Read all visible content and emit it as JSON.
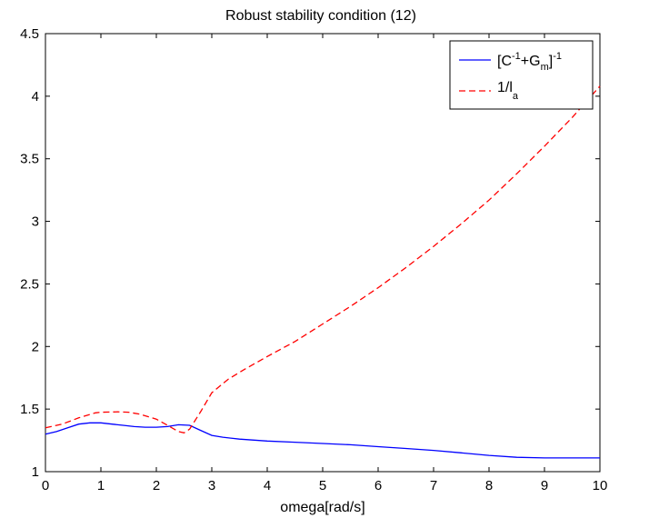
{
  "chart_data": {
    "type": "line",
    "title": "Robust stability condition (12)",
    "xlabel": "omega[rad/s]",
    "ylabel": "",
    "xlim": [
      0,
      10
    ],
    "ylim": [
      1,
      4.5
    ],
    "xticks": [
      0,
      1,
      2,
      3,
      4,
      5,
      6,
      7,
      8,
      9,
      10
    ],
    "yticks": [
      1,
      1.5,
      2,
      2.5,
      3,
      3.5,
      4,
      4.5
    ],
    "xtick_labels": [
      "0",
      "1",
      "2",
      "3",
      "4",
      "5",
      "6",
      "7",
      "8",
      "9",
      "10"
    ],
    "ytick_labels": [
      "1",
      "1.5",
      "2",
      "2.5",
      "3",
      "3.5",
      "4",
      "4.5"
    ],
    "grid": false,
    "legend_position": "top-right",
    "series": [
      {
        "name": "[C^-1+G_m]^-1",
        "color": "#0000ff",
        "style": "solid",
        "x": [
          0,
          0.2,
          0.4,
          0.6,
          0.8,
          1.0,
          1.2,
          1.4,
          1.6,
          1.8,
          2.0,
          2.2,
          2.4,
          2.6,
          2.8,
          3.0,
          3.2,
          3.5,
          4.0,
          4.5,
          5.0,
          5.5,
          6.0,
          6.5,
          7.0,
          7.5,
          8.0,
          8.5,
          9.0,
          9.5,
          10.0
        ],
        "y": [
          1.3,
          1.32,
          1.35,
          1.38,
          1.39,
          1.39,
          1.38,
          1.37,
          1.36,
          1.355,
          1.355,
          1.36,
          1.375,
          1.37,
          1.33,
          1.29,
          1.275,
          1.26,
          1.245,
          1.235,
          1.225,
          1.215,
          1.2,
          1.185,
          1.17,
          1.15,
          1.13,
          1.115,
          1.11,
          1.11,
          1.11
        ]
      },
      {
        "name": "1/l_a",
        "color": "#ff0000",
        "style": "dashed",
        "x": [
          0,
          0.3,
          0.6,
          0.9,
          1.0,
          1.3,
          1.5,
          1.7,
          2.0,
          2.2,
          2.4,
          2.5,
          2.6,
          2.8,
          3.0,
          3.3,
          3.6,
          4.0,
          4.5,
          5.0,
          5.5,
          6.0,
          6.5,
          7.0,
          7.5,
          8.0,
          8.5,
          9.0,
          9.5,
          10.0
        ],
        "y": [
          1.35,
          1.38,
          1.43,
          1.47,
          1.475,
          1.478,
          1.475,
          1.46,
          1.42,
          1.37,
          1.32,
          1.31,
          1.34,
          1.48,
          1.63,
          1.74,
          1.82,
          1.92,
          2.04,
          2.18,
          2.32,
          2.47,
          2.63,
          2.8,
          2.98,
          3.17,
          3.38,
          3.6,
          3.83,
          4.08
        ]
      }
    ]
  }
}
